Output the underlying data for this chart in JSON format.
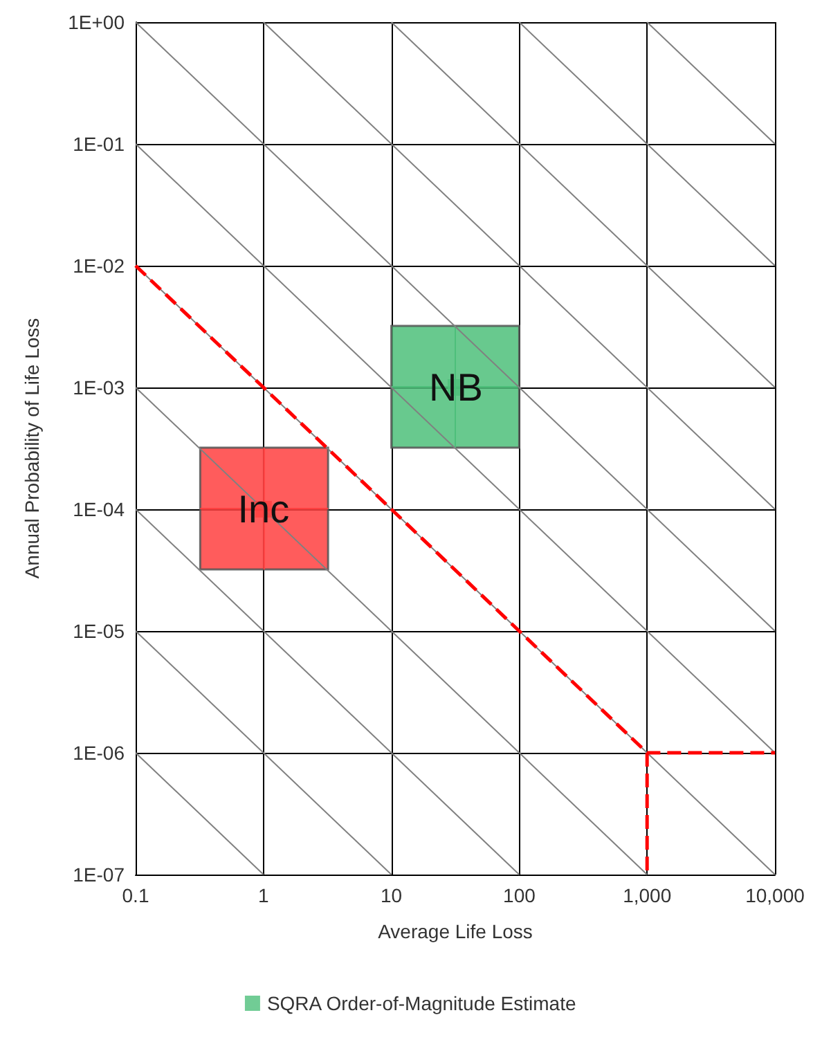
{
  "chart_data": {
    "type": "scatter",
    "xlabel": "Average Life Loss",
    "ylabel": "Annual Probability of Life Loss",
    "log": "xy",
    "xlim": [
      0.1,
      10000
    ],
    "ylim": [
      1e-07,
      1
    ],
    "xticks": [
      {
        "value": 0.1,
        "label": "0.1"
      },
      {
        "value": 1,
        "label": "1"
      },
      {
        "value": 10,
        "label": "10"
      },
      {
        "value": 100,
        "label": "100"
      },
      {
        "value": 1000,
        "label": "1,000"
      },
      {
        "value": 10000,
        "label": "10,000"
      }
    ],
    "yticks": [
      {
        "value": 1e-07,
        "label": "1E-07"
      },
      {
        "value": 1e-06,
        "label": "1E-06"
      },
      {
        "value": 1e-05,
        "label": "1E-05"
      },
      {
        "value": 0.0001,
        "label": "1E-04"
      },
      {
        "value": 0.001,
        "label": "1E-03"
      },
      {
        "value": 0.01,
        "label": "1E-02"
      },
      {
        "value": 0.1,
        "label": "1E-01"
      },
      {
        "value": 1,
        "label": "1E+00"
      }
    ],
    "grid": true,
    "legend": "bottom",
    "marker": "square",
    "series": [
      {
        "name": "SQRA Order-of-Magnitude Estimate",
        "color": "#4dbf7a",
        "colors": [
          "#4dbf7a",
          "#ff4040"
        ],
        "x": [
          32,
          1
        ],
        "values": [
          0.001,
          0.0001
        ],
        "xerrors": [
          [
            10,
            100
          ],
          [
            0.32,
            3.2
          ]
        ],
        "errors": [
          [
            0.00032,
            0.0032
          ],
          [
            3.2e-05,
            0.00032
          ]
        ]
      },
      {
        "type": "line",
        "color": "#ff0000",
        "line_style": "dashed",
        "marker": "none",
        "x": [
          0.1,
          1000,
          10000
        ],
        "values": [
          0.01,
          1e-06,
          1e-06
        ]
      },
      {
        "type": "line",
        "color": "#ff0000",
        "line_style": "dashed",
        "marker": "none",
        "x": [
          1000,
          1000
        ],
        "values": [
          1e-06,
          1e-07
        ]
      },
      {
        "type": "line",
        "color": "#808080",
        "line_style": "solid",
        "marker": "none",
        "x": [
          0.1,
          1
        ],
        "values": [
          1e-06,
          1e-07
        ]
      },
      {
        "type": "line",
        "color": "#808080",
        "line_style": "solid",
        "marker": "none",
        "x": [
          0.1,
          10
        ],
        "values": [
          1e-05,
          1e-07
        ]
      },
      {
        "type": "line",
        "color": "#808080",
        "line_style": "solid",
        "marker": "none",
        "x": [
          0.1,
          100
        ],
        "values": [
          0.0001,
          1e-07
        ]
      },
      {
        "type": "line",
        "color": "#808080",
        "line_style": "solid",
        "marker": "none",
        "x": [
          0.1,
          1000
        ],
        "values": [
          0.001,
          1e-07
        ]
      },
      {
        "type": "line",
        "color": "#808080",
        "line_style": "solid",
        "marker": "none",
        "x": [
          0.1,
          10000
        ],
        "values": [
          0.01,
          1e-07
        ]
      },
      {
        "type": "line",
        "color": "#808080",
        "line_style": "solid",
        "marker": "none",
        "x": [
          0.1,
          10000
        ],
        "values": [
          0.1,
          1e-06
        ]
      },
      {
        "type": "line",
        "color": "#808080",
        "line_style": "solid",
        "marker": "none",
        "x": [
          0.1,
          10000
        ],
        "values": [
          1,
          1e-05
        ]
      },
      {
        "type": "line",
        "color": "#808080",
        "line_style": "solid",
        "marker": "none",
        "x": [
          1,
          10000
        ],
        "values": [
          1,
          0.0001
        ]
      },
      {
        "type": "line",
        "color": "#808080",
        "line_style": "solid",
        "marker": "none",
        "x": [
          10,
          10000
        ],
        "values": [
          1,
          0.001
        ]
      },
      {
        "type": "line",
        "color": "#808080",
        "line_style": "solid",
        "marker": "none",
        "x": [
          100,
          10000
        ],
        "values": [
          1,
          0.01
        ]
      },
      {
        "type": "line",
        "color": "#808080",
        "line_style": "solid",
        "marker": "none",
        "x": [
          1000,
          10000
        ],
        "values": [
          1,
          0.1
        ]
      }
    ],
    "annotations": [
      {
        "text": "NB",
        "x": 32,
        "y": 0.001
      },
      {
        "text": "Inc",
        "x": 1,
        "y": 0.0001
      }
    ]
  }
}
